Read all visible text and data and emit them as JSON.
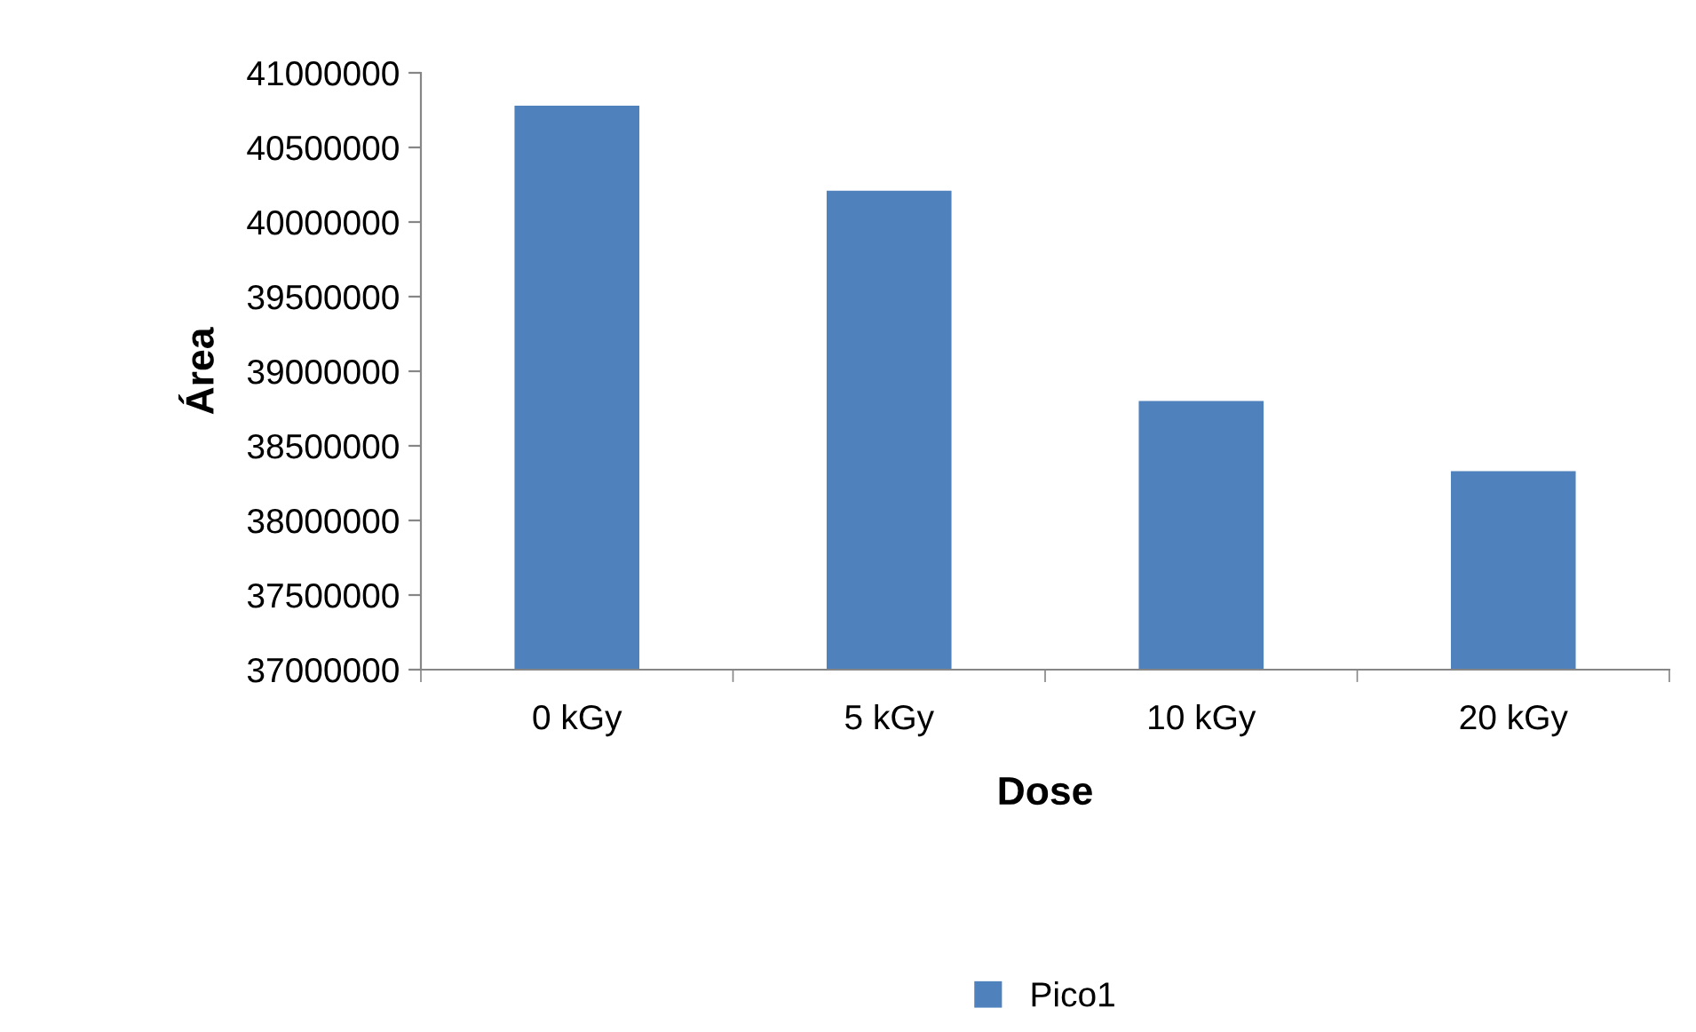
{
  "chart_data": {
    "type": "bar",
    "xlabel": "Dose",
    "ylabel": "Área",
    "categories": [
      "0 kGy",
      "5 kGy",
      "10 kGy",
      "20 kGy"
    ],
    "series": [
      {
        "name": "Pico1",
        "color": "#4f81bd",
        "values": [
          40780000,
          40210000,
          38800000,
          38330000
        ]
      }
    ],
    "ylim": [
      37000000,
      41000000
    ],
    "yticks": [
      37000000,
      37500000,
      38000000,
      38500000,
      39000000,
      39500000,
      40000000,
      40500000,
      41000000
    ],
    "grid": false,
    "legend": "bottom"
  }
}
